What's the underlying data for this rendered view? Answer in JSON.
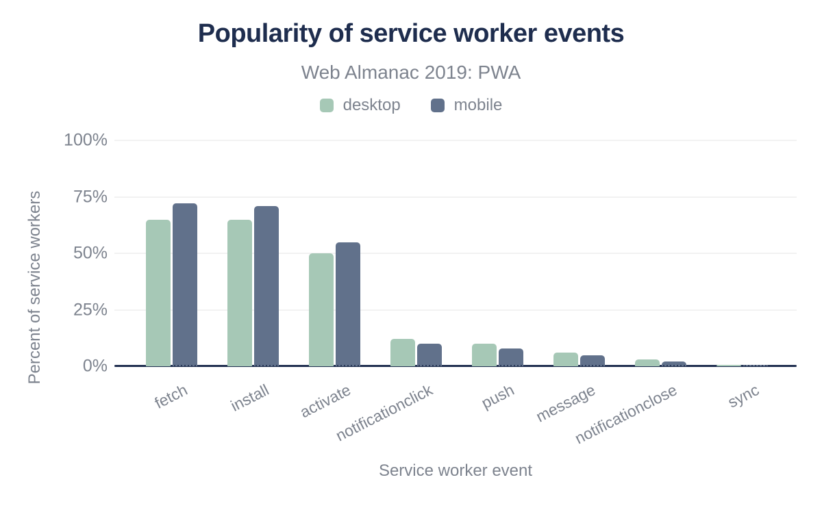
{
  "header": {
    "title": "Popularity of service worker events",
    "subtitle": "Web Almanac 2019: PWA"
  },
  "chart_data": {
    "type": "bar",
    "title": "Popularity of service worker events",
    "subtitle": "Web Almanac 2019: PWA",
    "categories": [
      "fetch",
      "install",
      "activate",
      "notificationclick",
      "push",
      "message",
      "notificationclose",
      "sync"
    ],
    "series": [
      {
        "name": "desktop",
        "color": "#a6c8b6",
        "values": [
          65,
          65,
          50,
          12,
          10,
          6,
          3,
          0.5
        ]
      },
      {
        "name": "mobile",
        "color": "#61718b",
        "values": [
          72,
          71,
          55,
          10,
          8,
          5,
          2,
          0.5
        ]
      }
    ],
    "xlabel": "Service worker event",
    "ylabel": "Percent of service workers",
    "yticks": [
      "0%",
      "25%",
      "50%",
      "75%",
      "100%"
    ],
    "ylim": [
      0,
      100
    ],
    "grid": true,
    "legend_position": "top"
  },
  "colors": {
    "title_text": "#1e2d4e",
    "axis_line": "#1e2d4e",
    "muted_text": "#7d838e",
    "gridline": "#f2f2f2",
    "desktop_series": "#a6c8b6",
    "mobile_series": "#61718b"
  }
}
